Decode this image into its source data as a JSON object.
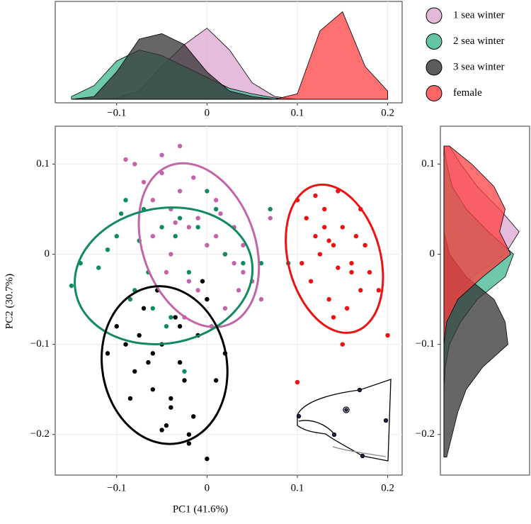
{
  "chart_data": {
    "type": "scatter",
    "x_label": "PC1 (41.6%)",
    "y_label": "PC2 (30.7%)",
    "xlim": [
      -0.168,
      0.216
    ],
    "ylim": [
      -0.245,
      0.142
    ],
    "xticks": [
      {
        "value": -0.1,
        "label": "−0.1"
      },
      0,
      0.1,
      0.2
    ],
    "yticks": [
      {
        "value": -0.2,
        "label": "−0.2"
      },
      {
        "value": -0.1,
        "label": "−0.1"
      },
      0,
      0.1
    ],
    "grid": true,
    "legend": "top-right",
    "density_x": [
      -0.15,
      -0.125,
      -0.1,
      -0.075,
      -0.05,
      -0.025,
      0,
      0.025,
      0.05,
      0.075,
      0.1,
      0.125,
      0.15,
      0.175,
      0.2
    ],
    "density_y": [
      0.12,
      0.1,
      0.075,
      0.05,
      0.025,
      0,
      -0.025,
      -0.05,
      -0.075,
      -0.1,
      -0.125,
      -0.15,
      -0.175,
      -0.2,
      -0.225
    ],
    "density_top_lim": [
      0,
      35
    ],
    "density_right_lim": [
      0,
      30
    ],
    "series": [
      {
        "name": "1 sea winter",
        "color": "#c264a8",
        "fill": "#dca6cf",
        "x": [
          -0.08,
          -0.07,
          -0.06,
          -0.05,
          -0.04,
          -0.03,
          -0.02,
          -0.01,
          0,
          0.01,
          0.02,
          0.03,
          0.04,
          0.05,
          -0.06,
          -0.04,
          -0.02,
          0,
          0.02,
          0.04,
          -0.05,
          -0.03,
          -0.01,
          0.01,
          0.03,
          -0.045,
          -0.025,
          0.005,
          0.06,
          0.07,
          -0.09,
          0.035,
          -0.015,
          0.015,
          -0.035
        ],
        "y": [
          0.1,
          0.08,
          0.06,
          0.09,
          0.05,
          0.07,
          0.03,
          0.04,
          0.01,
          0.02,
          0,
          -0.01,
          -0.02,
          -0.03,
          0.02,
          0,
          -0.03,
          -0.05,
          -0.06,
          0.01,
          0.11,
          0.12,
          -0.04,
          0.06,
          0.03,
          -0.02,
          -0.07,
          -0.08,
          -0.05,
          0.04,
          0.105,
          -0.04,
          0.085,
          0.045,
          0.035
        ],
        "ellipse": {
          "cx": -0.009,
          "cy": 0.01,
          "rx": 0.062,
          "ry": 0.094,
          "angle": -20
        },
        "density_top": [
          0,
          0,
          0.5,
          3,
          12,
          20,
          26,
          18,
          6,
          1,
          0,
          0,
          0,
          0,
          0
        ],
        "density_right": [
          2,
          6,
          12,
          20,
          27,
          22,
          10,
          3,
          1,
          0,
          0,
          0,
          0,
          0,
          0
        ]
      },
      {
        "name": "2 sea winter",
        "color": "#118a5e",
        "fill": "#3fb58f",
        "x": [
          -0.15,
          -0.14,
          -0.12,
          -0.1,
          -0.09,
          -0.08,
          -0.07,
          -0.06,
          -0.05,
          -0.04,
          -0.03,
          -0.02,
          -0.01,
          0,
          0.02,
          0.04,
          0.06,
          0.07,
          0.09,
          -0.11,
          -0.085,
          -0.065,
          -0.045,
          -0.035,
          -0.025,
          0.01,
          -0.095,
          -0.075
        ],
        "y": [
          -0.035,
          -0.01,
          -0.015,
          0.02,
          0.06,
          -0.04,
          0.05,
          -0.06,
          0.03,
          -0.07,
          0.04,
          -0.02,
          0.03,
          0.07,
          0,
          -0.01,
          -0.01,
          0.05,
          -0.01,
          0.005,
          -0.05,
          -0.02,
          -0.08,
          0.02,
          -0.13,
          0.05,
          0.045,
          0.015
        ],
        "ellipse": {
          "cx": -0.048,
          "cy": -0.024,
          "rx": 0.099,
          "ry": 0.075,
          "angle": -10
        },
        "density_top": [
          1,
          5,
          14,
          18,
          16,
          12,
          8,
          4,
          2,
          0.5,
          0,
          0,
          0,
          0,
          0
        ],
        "density_right": [
          0,
          1,
          3,
          8,
          16,
          25,
          22,
          12,
          6,
          2,
          0.5,
          0,
          0,
          0,
          0
        ]
      },
      {
        "name": "3 sea winter",
        "color": "#000000",
        "fill": "#333333",
        "x": [
          -0.1,
          -0.09,
          -0.08,
          -0.07,
          -0.06,
          -0.05,
          -0.04,
          -0.03,
          -0.02,
          -0.01,
          0,
          0.01,
          0.02,
          -0.085,
          -0.065,
          -0.055,
          -0.045,
          -0.035,
          -0.025,
          -0.015,
          -0.005,
          -0.075,
          -0.06,
          -0.04,
          -0.03,
          -0.02,
          0,
          -0.05,
          -0.11
        ],
        "y": [
          -0.08,
          -0.1,
          -0.13,
          -0.06,
          -0.15,
          -0.1,
          -0.17,
          -0.12,
          -0.2,
          -0.09,
          -0.05,
          -0.14,
          -0.11,
          -0.16,
          -0.12,
          -0.04,
          -0.19,
          -0.07,
          -0.14,
          -0.18,
          -0.03,
          -0.09,
          -0.11,
          -0.16,
          -0.08,
          -0.21,
          -0.227,
          -0.195,
          -0.11
        ],
        "ellipse": {
          "cx": -0.047,
          "cy": -0.123,
          "rx": 0.069,
          "ry": 0.088,
          "angle": -10
        },
        "density_top": [
          0,
          1,
          10,
          22,
          24,
          20,
          10,
          3,
          1,
          0,
          0,
          0,
          0,
          0,
          0
        ],
        "density_right": [
          0,
          0,
          0,
          0,
          0,
          2,
          8,
          18,
          22,
          23,
          14,
          8,
          5,
          3,
          1
        ]
      },
      {
        "name": "female",
        "color": "#ee1111",
        "fill": "#ff4040",
        "x": [
          0.1,
          0.11,
          0.12,
          0.13,
          0.14,
          0.15,
          0.16,
          0.17,
          0.18,
          0.115,
          0.125,
          0.135,
          0.145,
          0.155,
          0.165,
          0.175,
          0.105,
          0.15,
          0.14,
          0.13,
          0.16,
          0.12,
          0.17,
          0.2,
          0.1,
          0.19,
          0.145,
          0.135
        ],
        "y": [
          0.06,
          0.04,
          0.02,
          0.05,
          0.01,
          0.03,
          -0.01,
          -0.04,
          -0.02,
          -0.03,
          0,
          -0.05,
          0.07,
          -0.06,
          0.02,
          0.01,
          -0.01,
          -0.1,
          -0.07,
          0.03,
          -0.02,
          0.065,
          0.05,
          -0.09,
          -0.142,
          -0.04,
          -0.015,
          0.015
        ],
        "ellipse": {
          "cx": 0.141,
          "cy": -0.005,
          "rx": 0.051,
          "ry": 0.084,
          "angle": -15
        },
        "density_top": [
          0,
          0,
          0,
          0,
          0,
          0,
          0,
          0,
          0,
          0,
          2,
          25,
          32,
          12,
          3
        ],
        "density_right": [
          2,
          10,
          18,
          22,
          20,
          24,
          14,
          5,
          1,
          0,
          0,
          0,
          0,
          0,
          0
        ]
      }
    ]
  }
}
